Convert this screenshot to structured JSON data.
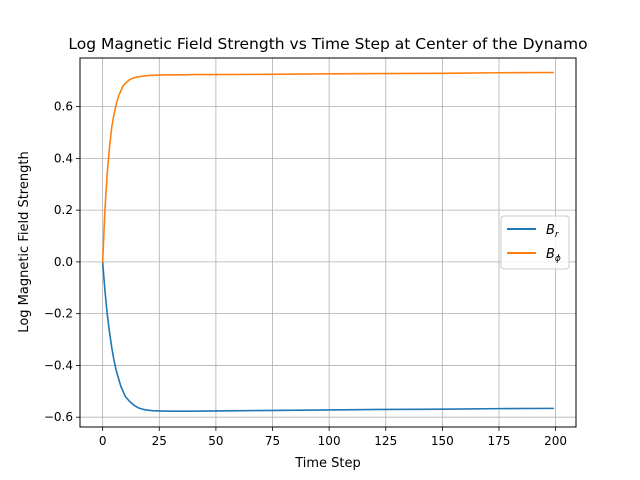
{
  "chart_data": {
    "type": "line",
    "title": "Log Magnetic Field Strength vs Time Step at Center of the Dynamo",
    "xlabel": "Time Step",
    "ylabel": "Log Magnetic Field Strength",
    "xlim": [
      -10,
      209
    ],
    "ylim": [
      -0.638,
      0.788
    ],
    "xticks": [
      0,
      25,
      50,
      75,
      100,
      125,
      150,
      175,
      200
    ],
    "yticks": [
      -0.6,
      -0.4,
      -0.2,
      0.0,
      0.2,
      0.4,
      0.6
    ],
    "ytick_labels": [
      "−0.6",
      "−0.4",
      "−0.2",
      "0.0",
      "0.2",
      "0.4",
      "0.6"
    ],
    "grid": true,
    "legend_position": "center-right",
    "series": [
      {
        "name": "B",
        "subscript": "r",
        "color": "#1f77b4",
        "x": [
          0,
          1,
          2,
          3,
          4,
          5,
          6,
          7,
          8,
          9,
          10,
          12,
          14,
          16,
          18,
          20,
          22,
          25,
          30,
          35,
          40,
          50,
          75,
          100,
          125,
          150,
          175,
          199
        ],
        "y": [
          0.0,
          -0.11,
          -0.2,
          -0.27,
          -0.33,
          -0.38,
          -0.42,
          -0.45,
          -0.48,
          -0.5,
          -0.52,
          -0.54,
          -0.555,
          -0.565,
          -0.57,
          -0.573,
          -0.575,
          -0.576,
          -0.577,
          -0.577,
          -0.577,
          -0.576,
          -0.574,
          -0.572,
          -0.57,
          -0.569,
          -0.567,
          -0.566
        ]
      },
      {
        "name": "B",
        "subscript": "ϕ",
        "color": "#ff7f0e",
        "x": [
          0,
          1,
          2,
          3,
          4,
          5,
          6,
          7,
          8,
          9,
          10,
          12,
          14,
          16,
          18,
          20,
          22,
          25,
          30,
          35,
          40,
          50,
          75,
          100,
          125,
          150,
          175,
          199
        ],
        "y": [
          0.0,
          0.2,
          0.34,
          0.44,
          0.52,
          0.57,
          0.61,
          0.64,
          0.66,
          0.68,
          0.69,
          0.705,
          0.712,
          0.716,
          0.718,
          0.72,
          0.721,
          0.722,
          0.723,
          0.723,
          0.724,
          0.724,
          0.725,
          0.727,
          0.728,
          0.729,
          0.731,
          0.732
        ]
      }
    ]
  }
}
